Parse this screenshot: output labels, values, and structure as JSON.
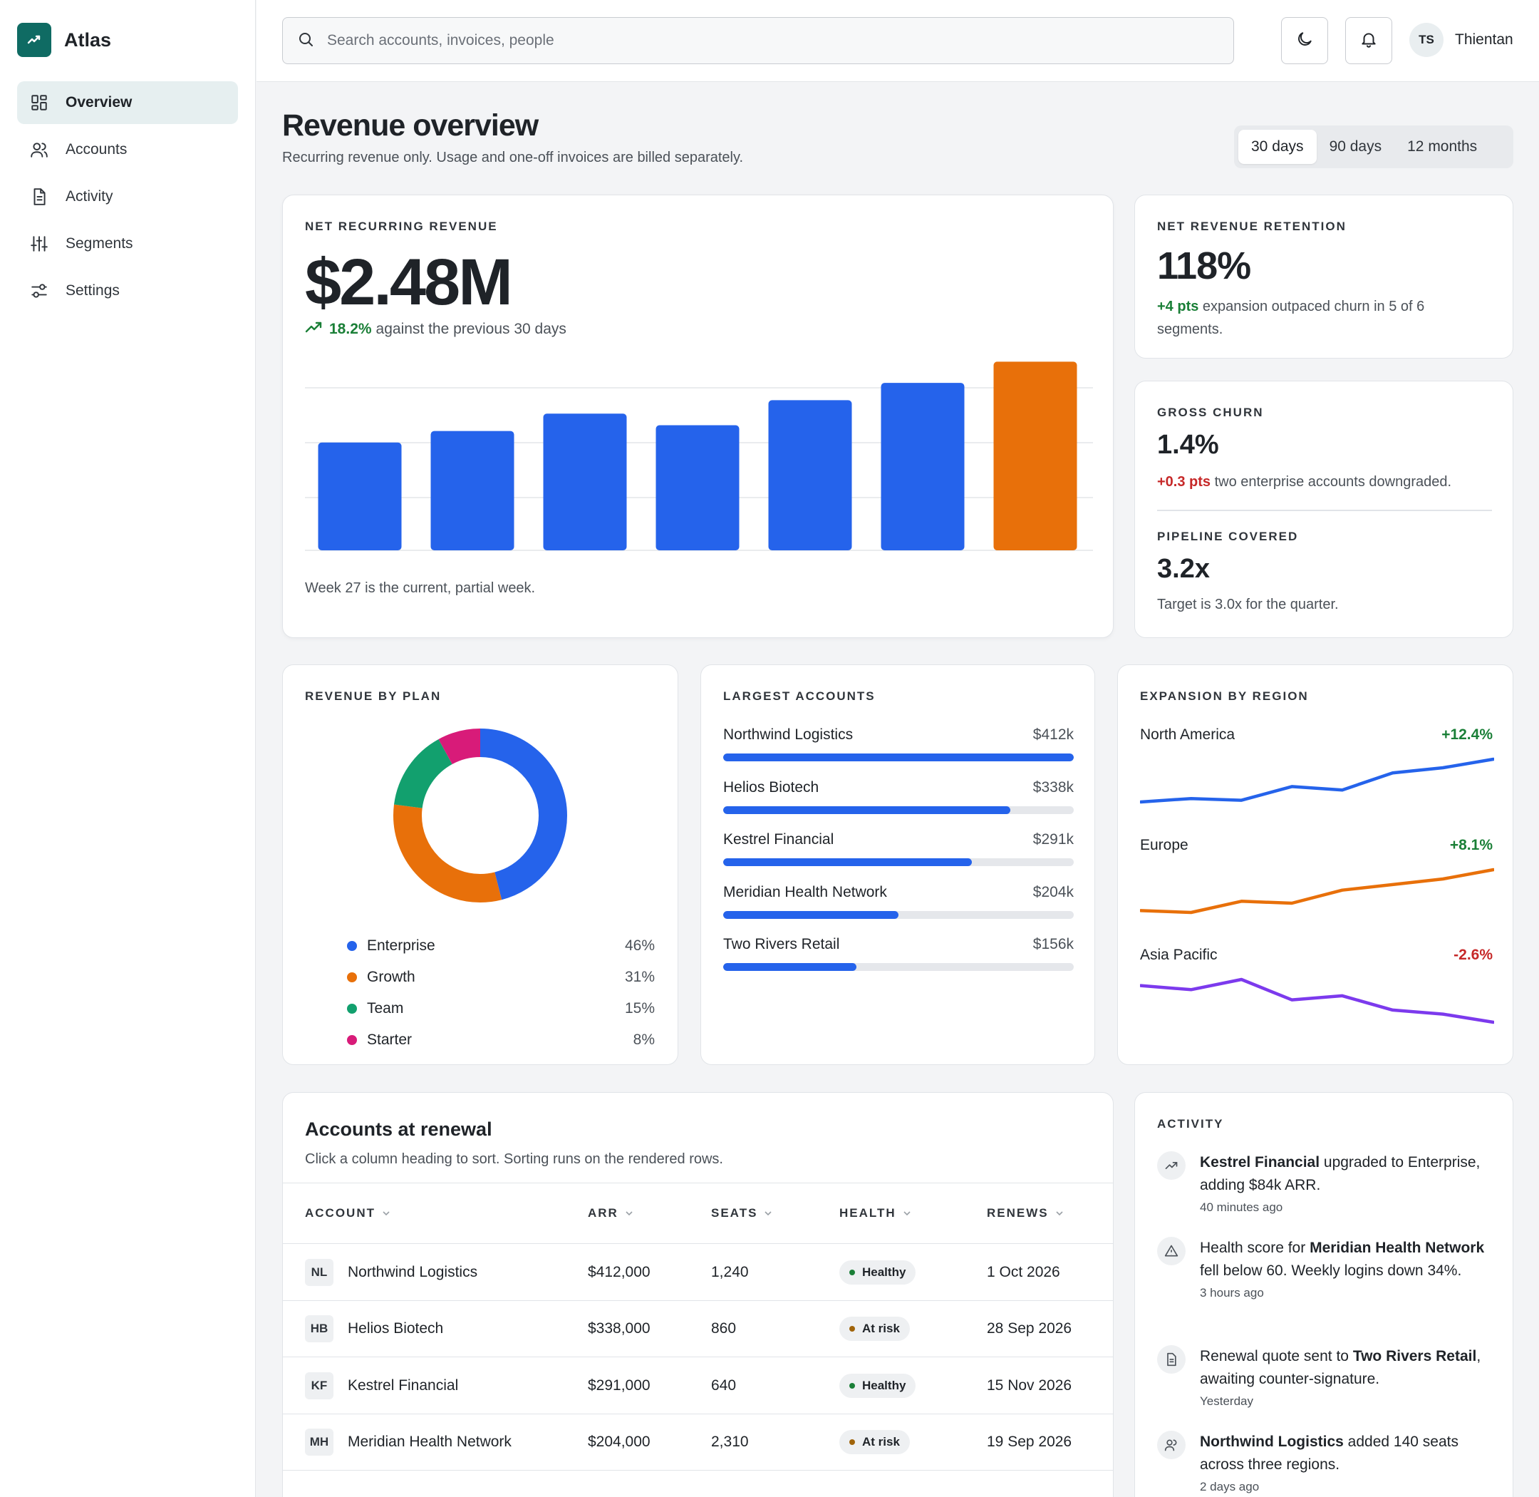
{
  "app": {
    "name": "Atlas"
  },
  "nav": [
    {
      "label": "Overview",
      "icon": "grid-icon",
      "active": true
    },
    {
      "label": "Accounts",
      "icon": "users-icon",
      "active": false
    },
    {
      "label": "Activity",
      "icon": "document-icon",
      "active": false
    },
    {
      "label": "Segments",
      "icon": "sliders-icon",
      "active": false
    },
    {
      "label": "Settings",
      "icon": "settings-icon",
      "active": false
    }
  ],
  "topbar": {
    "search_placeholder": "Search accounts, invoices, people",
    "user_initials": "TS",
    "user_name": "Thientan"
  },
  "page": {
    "title": "Revenue overview",
    "subtitle": "Recurring revenue only. Usage and one-off invoices are billed separately.",
    "ranges": [
      "30 days",
      "90 days",
      "12 months"
    ],
    "active_range": "30 days"
  },
  "nrr": {
    "label": "NET RECURRING REVENUE",
    "value": "$2.48M",
    "delta": "18.2%",
    "delta_text": "against the previous 30 days",
    "note": "Week 27 is the current, partial week."
  },
  "chart_data": {
    "type": "bar",
    "values": [
      28,
      31,
      35.5,
      32.5,
      39,
      43.5,
      49
    ],
    "ylim": [
      0,
      50
    ],
    "grid": true,
    "colors": [
      "#2563eb",
      "#2563eb",
      "#2563eb",
      "#2563eb",
      "#2563eb",
      "#2563eb",
      "#e8700a"
    ]
  },
  "retention": {
    "label": "NET REVENUE RETENTION",
    "value": "118%",
    "delta": "+4 pts",
    "text": "expansion outpaced churn in 5 of 6 segments."
  },
  "churn": {
    "label": "GROSS CHURN",
    "value": "1.4%",
    "delta": "+0.3 pts",
    "text": "two enterprise accounts downgraded.",
    "label2": "PIPELINE COVERED",
    "value2": "3.2x",
    "text2": "Target is 3.0x for the quarter."
  },
  "plan": {
    "label": "REVENUE BY PLAN",
    "items": [
      {
        "name": "Enterprise",
        "pct": "46%",
        "value": 46,
        "color": "#2563eb"
      },
      {
        "name": "Growth",
        "pct": "31%",
        "value": 31,
        "color": "#e8700a"
      },
      {
        "name": "Team",
        "pct": "15%",
        "value": 15,
        "color": "#12a06e"
      },
      {
        "name": "Starter",
        "pct": "8%",
        "value": 8,
        "color": "#d81b79"
      }
    ]
  },
  "largest": {
    "label": "LARGEST ACCOUNTS",
    "items": [
      {
        "name": "Northwind Logistics",
        "value": "$412k",
        "fraction": 1.0
      },
      {
        "name": "Helios Biotech",
        "value": "$338k",
        "fraction": 0.82
      },
      {
        "name": "Kestrel Financial",
        "value": "$291k",
        "fraction": 0.71
      },
      {
        "name": "Meridian Health Network",
        "value": "$204k",
        "fraction": 0.5
      },
      {
        "name": "Two Rivers Retail",
        "value": "$156k",
        "fraction": 0.38
      }
    ]
  },
  "regions": {
    "label": "EXPANSION BY REGION",
    "items": [
      {
        "name": "North America",
        "delta": "+12.4%",
        "color": "#2563eb",
        "delta_color": "#1a7f37",
        "trend": [
          3,
          5,
          4,
          12,
          10,
          20,
          23,
          28
        ]
      },
      {
        "name": "Europe",
        "delta": "+8.1%",
        "color": "#e8700a",
        "delta_color": "#1a7f37",
        "trend": [
          4,
          3,
          9,
          8,
          15,
          18,
          21,
          26
        ]
      },
      {
        "name": "Asia Pacific",
        "delta": "-2.6%",
        "color": "#7c3aed",
        "delta_color": "#c62828",
        "trend": [
          22,
          20,
          25,
          15,
          17,
          10,
          8,
          4
        ]
      }
    ]
  },
  "table": {
    "title": "Accounts at renewal",
    "subtitle": "Click a column heading to sort. Sorting runs on the rendered rows.",
    "columns": [
      "ACCOUNT",
      "ARR",
      "SEATS",
      "HEALTH",
      "RENEWS"
    ],
    "rows": [
      {
        "initials": "NL",
        "account": "Northwind Logistics",
        "arr": "$412,000",
        "seats": "1,240",
        "health": "Healthy",
        "health_color": "#1a7f37",
        "renews": "1 Oct 2026"
      },
      {
        "initials": "HB",
        "account": "Helios Biotech",
        "arr": "$338,000",
        "seats": "860",
        "health": "At risk",
        "health_color": "#a0640a",
        "renews": "28 Sep 2026"
      },
      {
        "initials": "KF",
        "account": "Kestrel Financial",
        "arr": "$291,000",
        "seats": "640",
        "health": "Healthy",
        "health_color": "#1a7f37",
        "renews": "15 Nov 2026"
      },
      {
        "initials": "MH",
        "account": "Meridian Health Network",
        "arr": "$204,000",
        "seats": "2,310",
        "health": "At risk",
        "health_color": "#a0640a",
        "renews": "19 Sep 2026"
      }
    ]
  },
  "activity": {
    "label": "ACTIVITY",
    "items": [
      {
        "icon": "trend-up-icon",
        "pre": "",
        "bold": "Kestrel Financial",
        "post": " upgraded to Enterprise, adding $84k ARR.",
        "time": "40 minutes ago"
      },
      {
        "icon": "warning-icon",
        "pre": "Health score for ",
        "bold": "Meridian Health Network",
        "post": " fell below 60. Weekly logins down 34%.",
        "time": "3 hours ago"
      },
      {
        "icon": "document-icon",
        "pre": "Renewal quote sent to ",
        "bold": "Two Rivers Retail",
        "post": ", awaiting counter-signature.",
        "time": "Yesterday"
      },
      {
        "icon": "users-icon",
        "pre": "",
        "bold": "Northwind Logistics",
        "post": " added 140 seats across three regions.",
        "time": "2 days ago"
      }
    ]
  }
}
